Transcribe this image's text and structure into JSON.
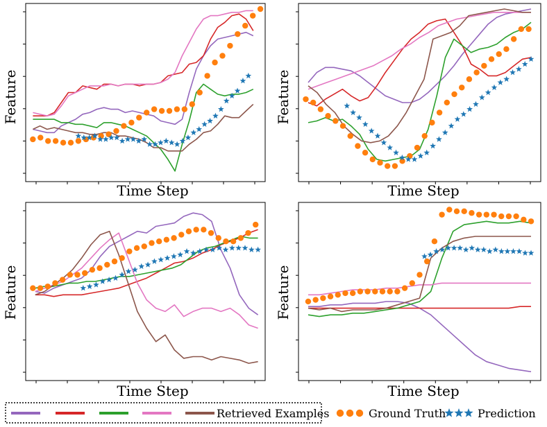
{
  "legend": {
    "retrieved_label": "Retrieved Examples",
    "ground_truth_label": "Ground Truth",
    "prediction_label": "Prediction",
    "colors": {
      "purple": "#9467bd",
      "red": "#d62728",
      "green": "#2ca02c",
      "pink": "#e377c2",
      "brown": "#8c564b",
      "ground_truth": "#ff7f0e",
      "prediction": "#1f77b4"
    }
  },
  "chart_data": [
    {
      "type": "line",
      "title": "",
      "xlabel": "Time Step",
      "ylabel": "Feature",
      "xlim": [
        0,
        1
      ],
      "ylim": [
        0,
        1
      ],
      "series": [
        {
          "name": "purple",
          "color": "#9467bd",
          "y": [
            0.28,
            0.27,
            0.26,
            0.26,
            0.3,
            0.32,
            0.34,
            0.37,
            0.38,
            0.4,
            0.41,
            0.4,
            0.4,
            0.38,
            0.39,
            0.38,
            0.37,
            0.36,
            0.33,
            0.32,
            0.31,
            0.34,
            0.5,
            0.64,
            0.72,
            0.78,
            0.82,
            0.83,
            0.84,
            0.85,
            0.86,
            0.84
          ]
        },
        {
          "name": "red",
          "color": "#d62728",
          "y": [
            0.36,
            0.36,
            0.36,
            0.38,
            0.44,
            0.5,
            0.5,
            0.54,
            0.53,
            0.52,
            0.55,
            0.55,
            0.54,
            0.55,
            0.55,
            0.54,
            0.55,
            0.55,
            0.56,
            0.6,
            0.61,
            0.62,
            0.67,
            0.68,
            0.72,
            0.82,
            0.89,
            0.92,
            0.96,
            0.97,
            0.94,
            0.87
          ]
        },
        {
          "name": "green",
          "color": "#2ca02c",
          "y": [
            0.34,
            0.34,
            0.34,
            0.34,
            0.32,
            0.32,
            0.31,
            0.31,
            0.3,
            0.29,
            0.32,
            0.32,
            0.31,
            0.3,
            0.28,
            0.26,
            0.24,
            0.2,
            0.16,
            0.1,
            0.03,
            0.19,
            0.33,
            0.5,
            0.55,
            0.52,
            0.49,
            0.48,
            0.49,
            0.49,
            0.5,
            0.52
          ]
        },
        {
          "name": "pink",
          "color": "#e377c2",
          "y": [
            0.38,
            0.37,
            0.36,
            0.37,
            0.42,
            0.48,
            0.5,
            0.52,
            0.54,
            0.54,
            0.54,
            0.55,
            0.54,
            0.55,
            0.55,
            0.55,
            0.55,
            0.55,
            0.56,
            0.58,
            0.62,
            0.72,
            0.8,
            0.88,
            0.94,
            0.96,
            0.96,
            0.97,
            0.98,
            0.98,
            0.99,
            0.99
          ]
        },
        {
          "name": "brown",
          "color": "#8c564b",
          "y": [
            0.28,
            0.3,
            0.28,
            0.29,
            0.28,
            0.27,
            0.26,
            0.26,
            0.25,
            0.25,
            0.26,
            0.26,
            0.24,
            0.24,
            0.23,
            0.22,
            0.2,
            0.17,
            0.17,
            0.15,
            0.15,
            0.15,
            0.19,
            0.22,
            0.26,
            0.27,
            0.31,
            0.36,
            0.35,
            0.35,
            0.39,
            0.43
          ]
        },
        {
          "name": "Ground Truth",
          "color": "#ff7f0e",
          "marker": "dot",
          "y": [
            0.22,
            0.23,
            0.21,
            0.21,
            0.2,
            0.2,
            0.21,
            0.22,
            0.23,
            0.24,
            0.25,
            0.27,
            0.3,
            0.32,
            0.35,
            0.38,
            0.4,
            0.39,
            0.39,
            0.4,
            0.4,
            0.43,
            0.5,
            0.6,
            0.68,
            0.72,
            0.78,
            0.85,
            0.9,
            0.96,
            1.0
          ]
        },
        {
          "name": "Prediction",
          "color": "#1f77b4",
          "marker": "star",
          "y": [
            0.24,
            0.23,
            0.23,
            0.24,
            0.22,
            0.22,
            0.23,
            0.23,
            0.21,
            0.22,
            0.22,
            0.21,
            0.22,
            0.19,
            0.19,
            0.2,
            0.21,
            0.2,
            0.19,
            0.21,
            0.23,
            0.26,
            0.28,
            0.31,
            0.33,
            0.36,
            0.4,
            0.45,
            0.48,
            0.51,
            0.57,
            0.6
          ]
        }
      ]
    },
    {
      "type": "line",
      "title": "",
      "xlabel": "Time Step",
      "ylabel": "Feature",
      "xlim": [
        0,
        1
      ],
      "ylim": [
        0,
        1
      ],
      "series": [
        {
          "name": "purple",
          "color": "#9467bd",
          "y": [
            0.56,
            0.62,
            0.65,
            0.65,
            0.64,
            0.63,
            0.6,
            0.56,
            0.52,
            0.48,
            0.46,
            0.44,
            0.44,
            0.46,
            0.5,
            0.55,
            0.6,
            0.66,
            0.73,
            0.79,
            0.85,
            0.91,
            0.95,
            0.97,
            0.98,
            0.99,
            1.0
          ]
        },
        {
          "name": "red",
          "color": "#d62728",
          "y": [
            0.44,
            0.42,
            0.46,
            0.49,
            0.52,
            0.48,
            0.45,
            0.47,
            0.54,
            0.62,
            0.69,
            0.76,
            0.82,
            0.86,
            0.91,
            0.93,
            0.94,
            0.86,
            0.78,
            0.67,
            0.64,
            0.6,
            0.6,
            0.62,
            0.66,
            0.7,
            0.71
          ]
        },
        {
          "name": "green",
          "color": "#2ca02c",
          "y": [
            0.32,
            0.33,
            0.35,
            0.33,
            0.34,
            0.3,
            0.25,
            0.16,
            0.1,
            0.09,
            0.1,
            0.11,
            0.12,
            0.16,
            0.28,
            0.48,
            0.71,
            0.82,
            0.78,
            0.74,
            0.76,
            0.77,
            0.79,
            0.83,
            0.86,
            0.88,
            0.92
          ]
        },
        {
          "name": "pink",
          "color": "#e377c2",
          "y": [
            0.52,
            0.54,
            0.56,
            0.58,
            0.6,
            0.62,
            0.64,
            0.66,
            0.69,
            0.72,
            0.76,
            0.79,
            0.83,
            0.86,
            0.9,
            0.92,
            0.94,
            0.95,
            0.96,
            0.97,
            0.98,
            0.98,
            0.98,
            0.98,
            0.98
          ]
        },
        {
          "name": "brown",
          "color": "#8c564b",
          "y": [
            0.54,
            0.5,
            0.43,
            0.38,
            0.3,
            0.25,
            0.21,
            0.2,
            0.21,
            0.24,
            0.3,
            0.38,
            0.48,
            0.58,
            0.82,
            0.84,
            0.86,
            0.9,
            0.96,
            0.97,
            0.98,
            0.99,
            1.0,
            0.99,
            0.98,
            0.98
          ]
        },
        {
          "name": "Ground Truth",
          "color": "#ff7f0e",
          "marker": "dot",
          "y": [
            0.46,
            0.44,
            0.4,
            0.36,
            0.33,
            0.3,
            0.24,
            0.18,
            0.14,
            0.1,
            0.08,
            0.06,
            0.06,
            0.09,
            0.12,
            0.17,
            0.24,
            0.32,
            0.38,
            0.44,
            0.49,
            0.53,
            0.58,
            0.62,
            0.66,
            0.7,
            0.73,
            0.76,
            0.82,
            0.88,
            0.88
          ]
        },
        {
          "name": "Prediction",
          "color": "#1f77b4",
          "marker": "star",
          "y": [
            0.42,
            0.38,
            0.35,
            0.31,
            0.27,
            0.24,
            0.2,
            0.17,
            0.14,
            0.11,
            0.1,
            0.1,
            0.12,
            0.14,
            0.18,
            0.22,
            0.26,
            0.3,
            0.34,
            0.37,
            0.4,
            0.43,
            0.47,
            0.5,
            0.53,
            0.56,
            0.58,
            0.62,
            0.64,
            0.67,
            0.7
          ]
        }
      ]
    },
    {
      "type": "line",
      "title": "",
      "xlabel": "Time Step",
      "ylabel": "Feature",
      "xlim": [
        0,
        1
      ],
      "ylim": [
        0,
        1
      ],
      "series": [
        {
          "name": "purple",
          "color": "#9467bd",
          "y": [
            0.5,
            0.49,
            0.52,
            0.54,
            0.56,
            0.58,
            0.63,
            0.71,
            0.77,
            0.8,
            0.83,
            0.86,
            0.85,
            0.89,
            0.9,
            0.91,
            0.95,
            0.97,
            0.96,
            0.92,
            0.75,
            0.64,
            0.48,
            0.4,
            0.36
          ]
        },
        {
          "name": "red",
          "color": "#d62728",
          "y": [
            0.48,
            0.48,
            0.47,
            0.48,
            0.48,
            0.48,
            0.49,
            0.5,
            0.51,
            0.52,
            0.54,
            0.56,
            0.58,
            0.61,
            0.64,
            0.67,
            0.68,
            0.7,
            0.73,
            0.75,
            0.78,
            0.8,
            0.82,
            0.85,
            0.87
          ]
        },
        {
          "name": "green",
          "color": "#2ca02c",
          "y": [
            0.52,
            0.53,
            0.53,
            0.54,
            0.55,
            0.55,
            0.56,
            0.56,
            0.57,
            0.58,
            0.59,
            0.59,
            0.6,
            0.61,
            0.62,
            0.63,
            0.64,
            0.66,
            0.7,
            0.74,
            0.76,
            0.77,
            0.79,
            0.81,
            0.83,
            0.82,
            0.82
          ]
        },
        {
          "name": "pink",
          "color": "#e377c2",
          "y": [
            0.5,
            0.52,
            0.54,
            0.56,
            0.6,
            0.64,
            0.7,
            0.76,
            0.81,
            0.85,
            0.7,
            0.55,
            0.45,
            0.4,
            0.38,
            0.42,
            0.35,
            0.38,
            0.4,
            0.4,
            0.38,
            0.4,
            0.36,
            0.3,
            0.28
          ]
        },
        {
          "name": "brown",
          "color": "#8c564b",
          "y": [
            0.48,
            0.5,
            0.54,
            0.58,
            0.63,
            0.7,
            0.78,
            0.84,
            0.86,
            0.72,
            0.55,
            0.38,
            0.28,
            0.2,
            0.24,
            0.15,
            0.1,
            0.11,
            0.11,
            0.09,
            0.11,
            0.1,
            0.09,
            0.07,
            0.08
          ]
        },
        {
          "name": "Ground Truth",
          "color": "#ff7f0e",
          "marker": "dot",
          "y": [
            0.52,
            0.52,
            0.53,
            0.55,
            0.57,
            0.6,
            0.6,
            0.61,
            0.63,
            0.64,
            0.66,
            0.68,
            0.7,
            0.74,
            0.76,
            0.77,
            0.79,
            0.8,
            0.81,
            0.82,
            0.84,
            0.86,
            0.87,
            0.87,
            0.85,
            0.82,
            0.8,
            0.8,
            0.82,
            0.85,
            0.9
          ]
        },
        {
          "name": "Prediction",
          "color": "#1f77b4",
          "marker": "star",
          "y": [
            0.52,
            0.53,
            0.54,
            0.56,
            0.57,
            0.58,
            0.6,
            0.62,
            0.63,
            0.65,
            0.66,
            0.68,
            0.69,
            0.7,
            0.71,
            0.72,
            0.74,
            0.73,
            0.74,
            0.75,
            0.75,
            0.76,
            0.75,
            0.76,
            0.76,
            0.76,
            0.75,
            0.75
          ]
        }
      ]
    },
    {
      "type": "line",
      "title": "",
      "xlabel": "Time Step",
      "ylabel": "Feature",
      "xlim": [
        0,
        1
      ],
      "ylim": [
        0,
        1
      ],
      "series": [
        {
          "name": "purple",
          "color": "#9467bd",
          "y": [
            0.41,
            0.41,
            0.42,
            0.42,
            0.43,
            0.43,
            0.43,
            0.44,
            0.44,
            0.43,
            0.4,
            0.36,
            0.3,
            0.24,
            0.18,
            0.12,
            0.08,
            0.06,
            0.04,
            0.03,
            0.02
          ]
        },
        {
          "name": "red",
          "color": "#d62728",
          "y": [
            0.4,
            0.4,
            0.4,
            0.4,
            0.4,
            0.4,
            0.4,
            0.4,
            0.4,
            0.4,
            0.4,
            0.4,
            0.4,
            0.4,
            0.4,
            0.4,
            0.4,
            0.4,
            0.4,
            0.41,
            0.41
          ]
        },
        {
          "name": "green",
          "color": "#2ca02c",
          "y": [
            0.36,
            0.35,
            0.36,
            0.36,
            0.37,
            0.37,
            0.38,
            0.39,
            0.4,
            0.42,
            0.44,
            0.5,
            0.7,
            0.86,
            0.9,
            0.91,
            0.92,
            0.91,
            0.91,
            0.92,
            0.91
          ]
        },
        {
          "name": "pink",
          "color": "#e377c2",
          "y": [
            0.48,
            0.48,
            0.49,
            0.5,
            0.51,
            0.51,
            0.51,
            0.52,
            0.52,
            0.53,
            0.54,
            0.54,
            0.55,
            0.55,
            0.55,
            0.55,
            0.55,
            0.55,
            0.55,
            0.55,
            0.55
          ]
        },
        {
          "name": "brown",
          "color": "#8c564b",
          "y": [
            0.4,
            0.39,
            0.4,
            0.38,
            0.39,
            0.39,
            0.39,
            0.4,
            0.42,
            0.44,
            0.46,
            0.7,
            0.76,
            0.8,
            0.82,
            0.83,
            0.83,
            0.83,
            0.83,
            0.83,
            0.83
          ]
        },
        {
          "name": "Ground Truth",
          "color": "#ff7f0e",
          "marker": "dot",
          "y": [
            0.44,
            0.45,
            0.46,
            0.47,
            0.48,
            0.49,
            0.49,
            0.5,
            0.5,
            0.5,
            0.5,
            0.5,
            0.5,
            0.52,
            0.55,
            0.6,
            0.68,
            0.8,
            0.96,
            0.99,
            0.98,
            0.98,
            0.97,
            0.96,
            0.96,
            0.96,
            0.95,
            0.95,
            0.95,
            0.93,
            0.92
          ]
        },
        {
          "name": "Prediction",
          "color": "#1f77b4",
          "marker": "star",
          "y": [
            0.71,
            0.72,
            0.74,
            0.75,
            0.76,
            0.76,
            0.76,
            0.75,
            0.76,
            0.75,
            0.75,
            0.74,
            0.75,
            0.74,
            0.74,
            0.74,
            0.74,
            0.73,
            0.73
          ]
        }
      ]
    }
  ]
}
